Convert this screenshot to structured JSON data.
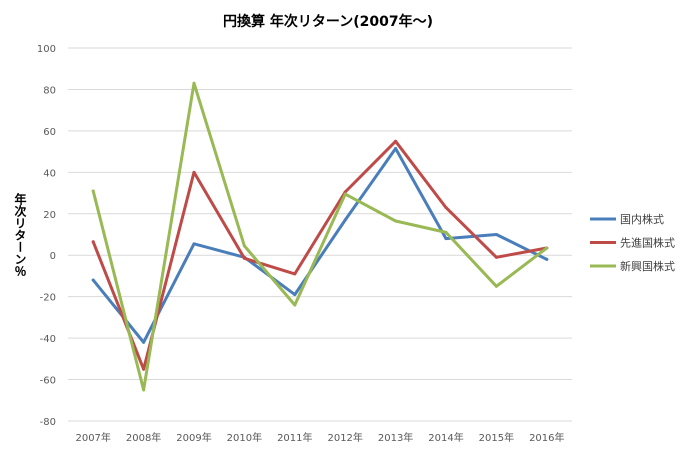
{
  "chart_data": {
    "type": "line",
    "title": "円換算  年次リターン(2007年～)",
    "ylabel": "年次リターン％",
    "xlabel": "",
    "categories": [
      "2007年",
      "2008年",
      "2009年",
      "2010年",
      "2011年",
      "2012年",
      "2013年",
      "2014年",
      "2015年",
      "2016年"
    ],
    "ylim": [
      -80,
      100
    ],
    "yticks": [
      100,
      80,
      60,
      40,
      20,
      0,
      -20,
      -40,
      -60,
      -80
    ],
    "grid": true,
    "legend_position": "right",
    "series": [
      {
        "name": "国内株式",
        "color": "#4a7ebb",
        "values": [
          -12,
          -42,
          5.5,
          -1,
          -19,
          17,
          51.5,
          8,
          10,
          -2
        ]
      },
      {
        "name": "先進国株式",
        "color": "#be4b48",
        "values": [
          6.5,
          -55,
          40,
          -1.5,
          -9,
          30.5,
          55,
          23,
          -1,
          3.5
        ]
      },
      {
        "name": "新興国株式",
        "color": "#98b954",
        "values": [
          31,
          -65,
          83,
          4.5,
          -24,
          29.5,
          16.5,
          11,
          -15,
          3.5
        ]
      }
    ]
  }
}
